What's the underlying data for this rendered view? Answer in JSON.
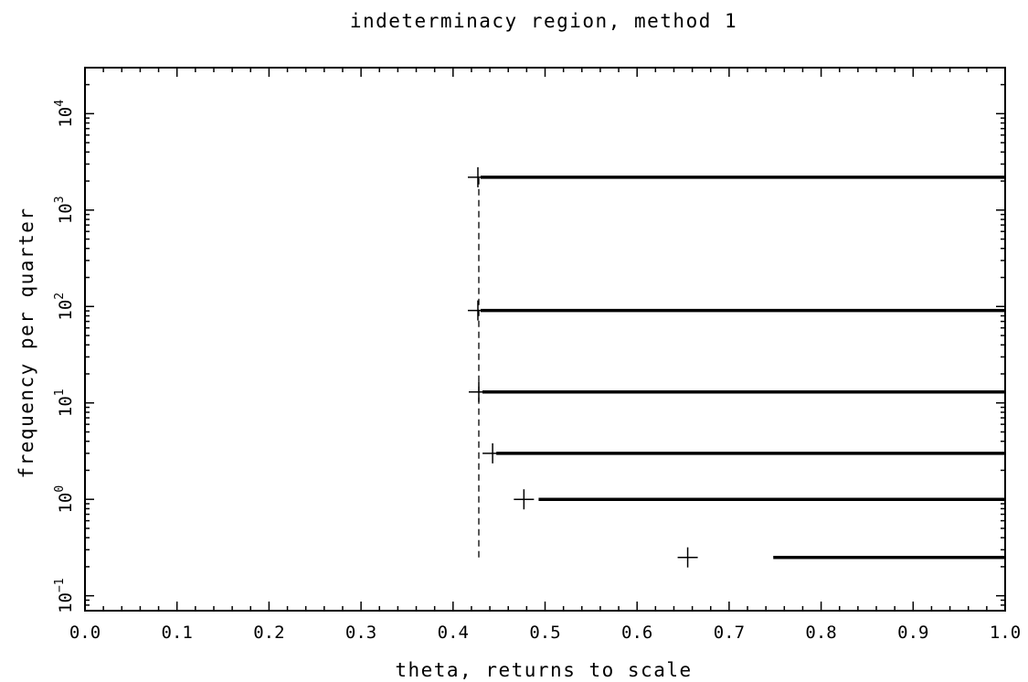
{
  "chart_data": {
    "type": "line",
    "title": "indeterminacy region, method 1",
    "xlabel": "theta, returns to scale",
    "ylabel": "frequency per quarter",
    "xlim": [
      0.0,
      1.0
    ],
    "ylim": [
      0.07,
      30000
    ],
    "y_scale": "log",
    "x_ticks": [
      "0.0",
      "0.1",
      "0.2",
      "0.3",
      "0.4",
      "0.5",
      "0.6",
      "0.7",
      "0.8",
      "0.9",
      "1.0"
    ],
    "y_ticks": [
      {
        "base": "10",
        "exp": "−1",
        "value": 0.1
      },
      {
        "base": "10",
        "exp": "0",
        "value": 1
      },
      {
        "base": "10",
        "exp": "1",
        "value": 10
      },
      {
        "base": "10",
        "exp": "2",
        "value": 100
      },
      {
        "base": "10",
        "exp": "3",
        "value": 1000
      },
      {
        "base": "10",
        "exp": "4",
        "value": 10000
      }
    ],
    "grid": false,
    "legend": "none",
    "segments": [
      {
        "y": 2190,
        "x_start": 0.43,
        "x_end": 1.0
      },
      {
        "y": 91,
        "x_start": 0.43,
        "x_end": 1.0
      },
      {
        "y": 13,
        "x_start": 0.432,
        "x_end": 1.0
      },
      {
        "y": 3,
        "x_start": 0.447,
        "x_end": 1.0
      },
      {
        "y": 1,
        "x_start": 0.493,
        "x_end": 1.0
      },
      {
        "y": 0.25,
        "x_start": 0.748,
        "x_end": 1.0
      }
    ],
    "markers": [
      {
        "x": 0.427,
        "y": 2190
      },
      {
        "x": 0.427,
        "y": 91
      },
      {
        "x": 0.428,
        "y": 13
      },
      {
        "x": 0.443,
        "y": 3
      },
      {
        "x": 0.477,
        "y": 1
      },
      {
        "x": 0.655,
        "y": 0.25
      }
    ],
    "dashed_line": {
      "x": 0.428,
      "y_start": 0.25,
      "y_end": 2190
    },
    "colors": {
      "line": "#000000",
      "background": "#ffffff"
    }
  }
}
